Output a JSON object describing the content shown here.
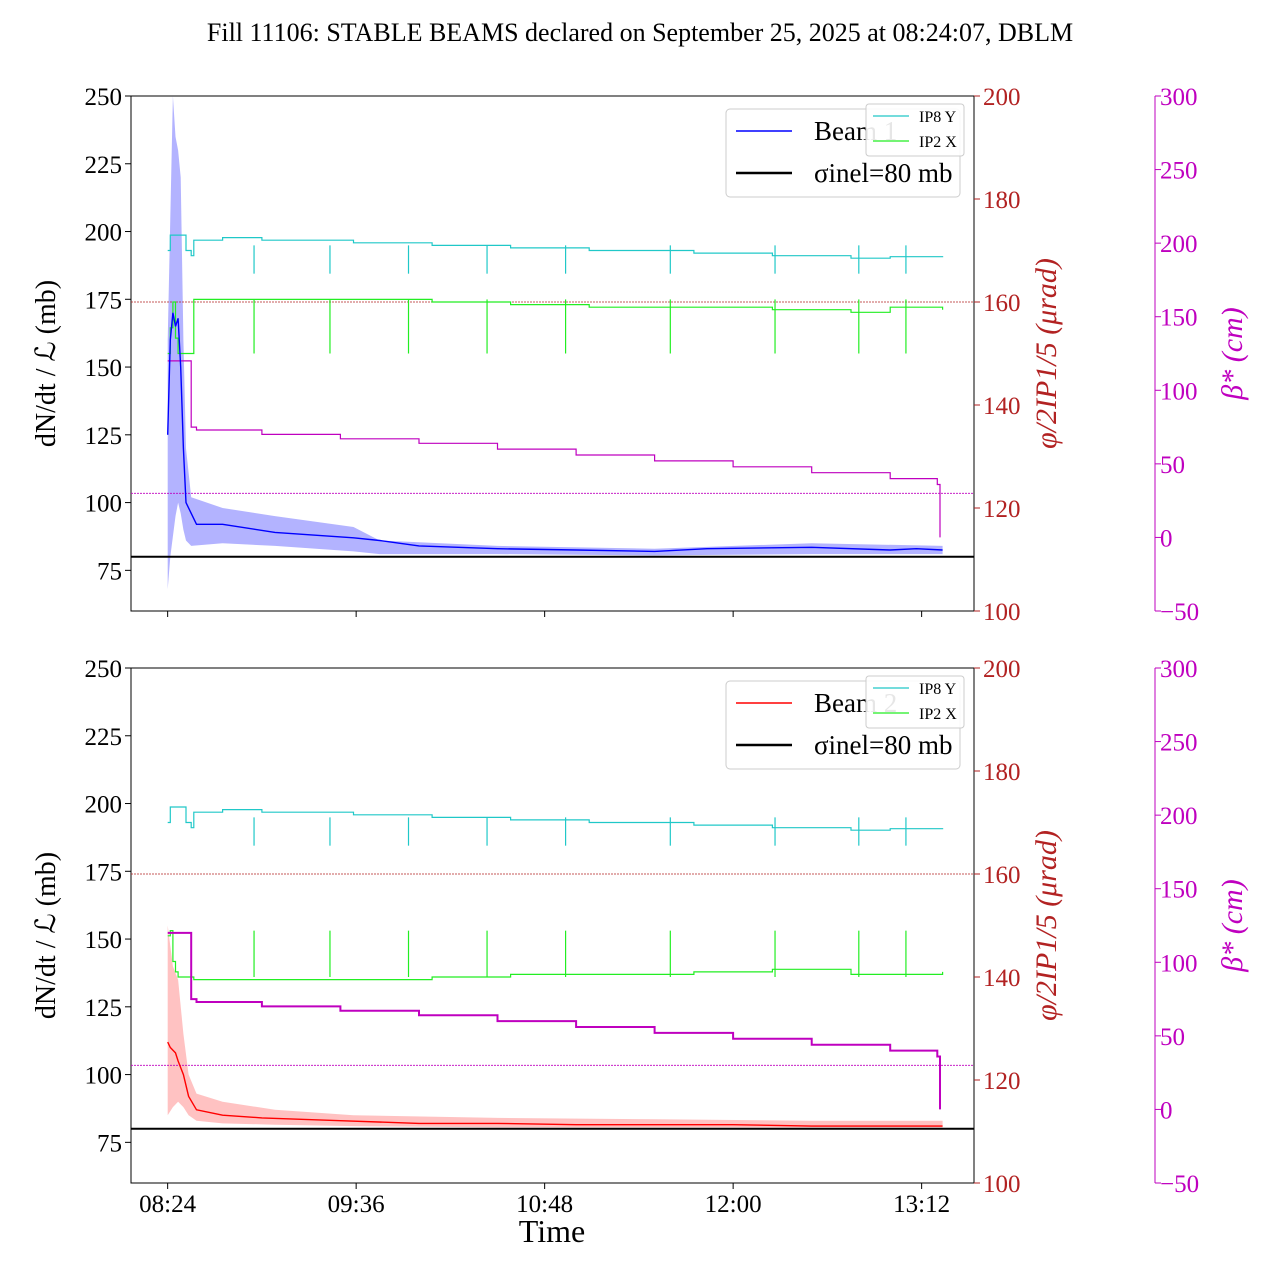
{
  "title": "Fill 11106: STABLE BEAMS declared on September 25, 2025 at 08:24:07, DBLM",
  "xlabel": "Time",
  "x_ticks": [
    "08:24",
    "09:36",
    "10:48",
    "12:00",
    "13:12"
  ],
  "colors": {
    "beam1": "#0000ff",
    "beam1_band": "#8080ff",
    "beam2": "#ff0000",
    "beam2_band": "#ff9a9a",
    "ip8y": "#20c8c8",
    "ip2x": "#22ee22",
    "beta": "#bf00bf",
    "phi": "#b22222",
    "sigma": "#000000"
  },
  "chart_data": [
    {
      "type": "line",
      "panel": "top",
      "ylabel_left": "dN/dt / ℒ (mb)",
      "ylabel_right1": "φ/2IP1/5 (μrad)",
      "ylabel_right2": "β* (cm)",
      "ylim_left": [
        60,
        250
      ],
      "ylim_right1": [
        100,
        200
      ],
      "ylim_right2": [
        -50,
        300
      ],
      "yticks_left": [
        75,
        100,
        125,
        150,
        175,
        200,
        225,
        250
      ],
      "yticks_right1": [
        100,
        120,
        140,
        160,
        180,
        200
      ],
      "yticks_right2": [
        -50,
        0,
        50,
        100,
        150,
        200,
        250,
        300
      ],
      "xlim": [
        "08:10",
        "13:32"
      ],
      "legend_main": [
        {
          "label": "Beam 1",
          "color": "#0000ff"
        },
        {
          "label": "σinel=80 mb",
          "color": "#000000"
        }
      ],
      "legend_cross": [
        {
          "label": "IP8 Y",
          "color": "#20c8c8"
        },
        {
          "label": "IP2 X",
          "color": "#22ee22"
        }
      ],
      "series": [
        {
          "name": "Beam 1",
          "axis": "left",
          "x": [
            "08:24",
            "08:25",
            "08:26",
            "08:27",
            "08:28",
            "08:29",
            "08:30",
            "08:31",
            "08:35",
            "08:45",
            "09:05",
            "09:35",
            "09:45",
            "10:00",
            "10:30",
            "11:00",
            "11:30",
            "11:50",
            "12:30",
            "13:00",
            "13:10",
            "13:20"
          ],
          "y": [
            125,
            160,
            170,
            165,
            168,
            150,
            120,
            100,
            92,
            92,
            89,
            87,
            86,
            84,
            83,
            82.5,
            82,
            83,
            83.5,
            82.5,
            83,
            82.5
          ]
        },
        {
          "name": "Beam 1 upper",
          "axis": "left",
          "x": [
            "08:24",
            "08:26",
            "08:27",
            "08:28",
            "08:29",
            "08:30",
            "08:31",
            "08:33",
            "08:45",
            "09:05",
            "09:35",
            "09:45",
            "10:30",
            "11:30",
            "12:30",
            "13:20"
          ],
          "y": [
            160,
            250,
            235,
            230,
            220,
            160,
            120,
            102,
            98,
            95,
            91,
            86,
            84,
            83,
            85,
            84
          ]
        },
        {
          "name": "Beam 1 lower",
          "axis": "left",
          "x": [
            "08:24",
            "08:25",
            "08:27",
            "08:28",
            "08:29",
            "08:30",
            "08:31",
            "08:33",
            "08:45",
            "09:05",
            "09:35",
            "09:45",
            "10:30",
            "11:30",
            "12:30",
            "13:20"
          ],
          "y": [
            68,
            80,
            95,
            100,
            96,
            90,
            86,
            84,
            85,
            84,
            82,
            81,
            81,
            80.5,
            81,
            81
          ]
        },
        {
          "name": "σinel=80 mb",
          "axis": "left",
          "x": [
            "08:10",
            "13:32"
          ],
          "y": [
            80,
            80
          ]
        },
        {
          "name": "IP8 Y",
          "axis": "right1",
          "x": [
            "08:24",
            "08:25",
            "08:30",
            "08:31",
            "08:33",
            "08:34",
            "08:45",
            "09:00",
            "09:35",
            "10:05",
            "10:35",
            "11:05",
            "11:45",
            "12:15",
            "12:45",
            "13:00",
            "13:20"
          ],
          "y": [
            170,
            173,
            173,
            170,
            169,
            172,
            172.5,
            172,
            171.5,
            171,
            170.5,
            170,
            169.5,
            169,
            168.5,
            168.8,
            168.7
          ]
        },
        {
          "name": "IP2 X",
          "axis": "right1",
          "x": [
            "08:24",
            "08:25",
            "08:26",
            "08:27",
            "08:28",
            "08:30",
            "08:33",
            "08:34",
            "08:45",
            "09:35",
            "10:05",
            "10:35",
            "11:05",
            "11:45",
            "12:15",
            "12:45",
            "13:00",
            "13:20"
          ],
          "y": [
            150,
            155,
            160,
            153,
            150,
            150,
            150,
            160.5,
            160.5,
            160.5,
            160,
            159.5,
            159,
            159,
            158.5,
            158,
            159,
            158.5
          ]
        },
        {
          "name": "φ/2 IP1/5 ref",
          "axis": "right1",
          "x": [
            "08:10",
            "13:32"
          ],
          "y": [
            160,
            160
          ]
        },
        {
          "name": "β*",
          "axis": "right2",
          "x": [
            "08:24",
            "08:29",
            "08:33",
            "08:35",
            "09:00",
            "09:30",
            "10:00",
            "10:30",
            "11:00",
            "11:30",
            "12:00",
            "12:30",
            "13:00",
            "13:18",
            "13:19"
          ],
          "y": [
            120,
            120,
            75,
            73,
            70,
            67,
            64,
            60,
            56,
            52,
            48,
            44,
            40,
            36,
            0
          ]
        },
        {
          "name": "β* ref",
          "axis": "right2",
          "x": [
            "08:10",
            "13:32"
          ],
          "y": [
            30,
            30
          ]
        }
      ],
      "cross_dips": [
        "08:57",
        "09:26",
        "09:56",
        "10:26",
        "10:56",
        "11:36",
        "12:16",
        "12:48",
        "13:06"
      ]
    },
    {
      "type": "line",
      "panel": "bottom",
      "ylabel_left": "dN/dt / ℒ (mb)",
      "ylabel_right1": "φ/2IP1/5 (μrad)",
      "ylabel_right2": "β* (cm)",
      "ylim_left": [
        60,
        250
      ],
      "ylim_right1": [
        100,
        200
      ],
      "ylim_right2": [
        -50,
        300
      ],
      "yticks_left": [
        75,
        100,
        125,
        150,
        175,
        200,
        225,
        250
      ],
      "yticks_right1": [
        100,
        120,
        140,
        160,
        180,
        200
      ],
      "yticks_right2": [
        -50,
        0,
        50,
        100,
        150,
        200,
        250,
        300
      ],
      "xlim": [
        "08:10",
        "13:32"
      ],
      "legend_main": [
        {
          "label": "Beam 2",
          "color": "#ff0000"
        },
        {
          "label": "σinel=80 mb",
          "color": "#000000"
        }
      ],
      "legend_cross": [
        {
          "label": "IP8 Y",
          "color": "#20c8c8"
        },
        {
          "label": "IP2 X",
          "color": "#22ee22"
        }
      ],
      "series": [
        {
          "name": "Beam 2",
          "axis": "left",
          "x": [
            "08:24",
            "08:25",
            "08:27",
            "08:28",
            "08:30",
            "08:32",
            "08:35",
            "08:45",
            "09:00",
            "09:30",
            "10:00",
            "10:30",
            "11:00",
            "11:30",
            "12:00",
            "12:30",
            "13:00",
            "13:20"
          ],
          "y": [
            112,
            110,
            108,
            105,
            100,
            92,
            87,
            85,
            84,
            83,
            82,
            82,
            81.5,
            81.5,
            81.5,
            81,
            81,
            81
          ]
        },
        {
          "name": "Beam 2 upper",
          "axis": "left",
          "x": [
            "08:24",
            "08:26",
            "08:28",
            "08:30",
            "08:32",
            "08:35",
            "08:45",
            "09:05",
            "09:35",
            "10:30",
            "11:30",
            "12:30",
            "13:20"
          ],
          "y": [
            155,
            140,
            135,
            115,
            100,
            93,
            90,
            87,
            85,
            84,
            83.5,
            83,
            83
          ]
        },
        {
          "name": "Beam 2 lower",
          "axis": "left",
          "x": [
            "08:24",
            "08:26",
            "08:28",
            "08:30",
            "08:32",
            "08:35",
            "08:45",
            "09:05",
            "09:35",
            "10:30",
            "11:30",
            "12:30",
            "13:20"
          ],
          "y": [
            85,
            88,
            90,
            88,
            85,
            83,
            82,
            81.5,
            81,
            80.5,
            80.5,
            80.5,
            80.5
          ]
        },
        {
          "name": "σinel=80 mb",
          "axis": "left",
          "x": [
            "08:10",
            "13:32"
          ],
          "y": [
            80,
            80
          ]
        },
        {
          "name": "IP8 Y",
          "axis": "right1",
          "x": [
            "08:24",
            "08:25",
            "08:30",
            "08:31",
            "08:33",
            "08:34",
            "08:45",
            "09:00",
            "09:35",
            "10:05",
            "10:35",
            "11:05",
            "11:45",
            "12:15",
            "12:45",
            "13:00",
            "13:20"
          ],
          "y": [
            170,
            173,
            173,
            170,
            169,
            172,
            172.5,
            172,
            171.5,
            171,
            170.5,
            170,
            169.5,
            169,
            168.5,
            168.8,
            168.7
          ]
        },
        {
          "name": "IP2 X",
          "axis": "right1",
          "x": [
            "08:24",
            "08:25",
            "08:26",
            "08:27",
            "08:28",
            "08:30",
            "08:33",
            "08:34",
            "08:45",
            "09:35",
            "10:05",
            "10:35",
            "11:05",
            "11:45",
            "12:15",
            "12:45",
            "13:00",
            "13:20"
          ],
          "y": [
            148,
            149,
            143,
            141,
            140,
            140,
            140,
            139.5,
            139.5,
            139.5,
            140,
            140.5,
            140.5,
            141,
            141.5,
            140.5,
            140.5,
            141
          ]
        },
        {
          "name": "φ/2 IP1/5 ref",
          "axis": "right1",
          "x": [
            "08:10",
            "13:32"
          ],
          "y": [
            160,
            160
          ]
        },
        {
          "name": "β*",
          "axis": "right2",
          "x": [
            "08:24",
            "08:29",
            "08:33",
            "08:35",
            "09:00",
            "09:30",
            "10:00",
            "10:30",
            "11:00",
            "11:30",
            "12:00",
            "12:30",
            "13:00",
            "13:18",
            "13:19"
          ],
          "y": [
            120,
            120,
            75,
            73,
            70,
            67,
            64,
            60,
            56,
            52,
            48,
            44,
            40,
            36,
            0
          ]
        },
        {
          "name": "β* ref",
          "axis": "right2",
          "x": [
            "08:10",
            "13:32"
          ],
          "y": [
            30,
            30
          ]
        }
      ],
      "cross_dips": [
        "08:57",
        "09:26",
        "09:56",
        "10:26",
        "10:56",
        "11:36",
        "12:16",
        "12:48",
        "13:06"
      ]
    }
  ]
}
